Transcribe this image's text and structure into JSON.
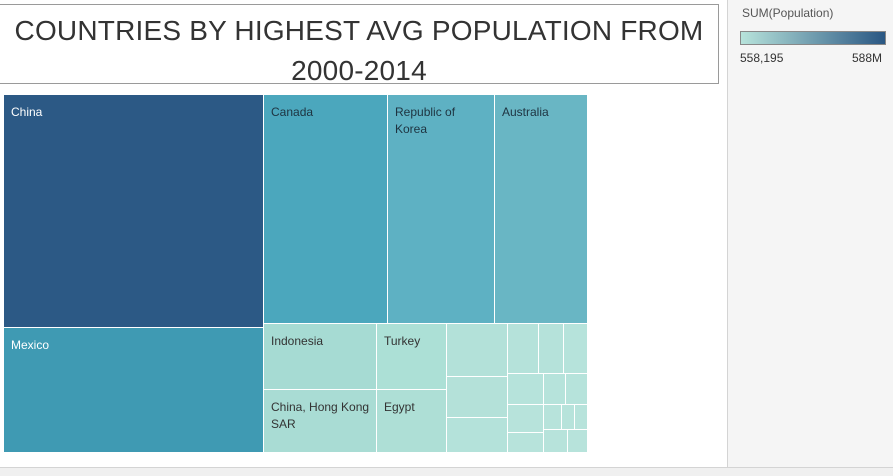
{
  "title": "COUNTRIES BY HIGHEST AVG POPULATION FROM 2000-2014",
  "legend": {
    "title": "SUM(Population)",
    "min_label": "558,195",
    "max_label": "588M",
    "color_low": "#b7e3db",
    "color_high": "#2a5783"
  },
  "chart_data": {
    "type": "treemap",
    "title": "COUNTRIES BY HIGHEST AVG POPULATION FROM 2000-2014",
    "measure": "SUM(Population)",
    "color_scale": {
      "min": 558195,
      "max": 588000000,
      "min_label": "558,195",
      "max_label": "588M"
    },
    "items": [
      {
        "label": "China",
        "value": 588000000,
        "color": "#2c5985"
      },
      {
        "label": "Mexico",
        "value": 245000000,
        "color": "#3f9ab3"
      },
      {
        "label": "Canada",
        "value": 145000000,
        "color": "#4ba7bd"
      },
      {
        "label": "Republic of Korea",
        "value": 125000000,
        "color": "#5eb1c3"
      },
      {
        "label": "Australia",
        "value": 105000000,
        "color": "#69b6c4"
      },
      {
        "label": "Indonesia",
        "value": 44000000,
        "color": "#a6dbd3"
      },
      {
        "label": "China, Hong Kong SAR",
        "value": 44000000,
        "color": "#a9dcd4"
      },
      {
        "label": "Turkey",
        "value": 30000000,
        "color": "#ace0d6"
      },
      {
        "label": "Egypt",
        "value": 26000000,
        "color": "#aedfd6"
      },
      {
        "label": "",
        "value": 11000000,
        "color": "#b3e1d9"
      },
      {
        "label": "",
        "value": 8000000,
        "color": "#b4e1d9"
      },
      {
        "label": "",
        "value": 6000000,
        "color": "#b4e2da"
      },
      {
        "label": "",
        "value": 4600000,
        "color": "#b5e2da"
      },
      {
        "label": "",
        "value": 3400000,
        "color": "#b5e2da"
      },
      {
        "label": "",
        "value": 3100000,
        "color": "#b6e3db"
      },
      {
        "label": "",
        "value": 2900000,
        "color": "#b6e3db"
      },
      {
        "label": "",
        "value": 2500000,
        "color": "#b6e3db"
      },
      {
        "label": "",
        "value": 2400000,
        "color": "#b6e3db"
      },
      {
        "label": "",
        "value": 2200000,
        "color": "#b7e3db"
      },
      {
        "label": "",
        "value": 2000000,
        "color": "#b7e3db"
      },
      {
        "label": "",
        "value": 1400000,
        "color": "#b7e3db"
      },
      {
        "label": "",
        "value": 1000000,
        "color": "#b7e3db"
      },
      {
        "label": "",
        "value": 800000,
        "color": "#b7e3db"
      },
      {
        "label": "",
        "value": 700000,
        "color": "#b7e3db"
      },
      {
        "label": "",
        "value": 558195,
        "color": "#b7e3db"
      }
    ]
  }
}
